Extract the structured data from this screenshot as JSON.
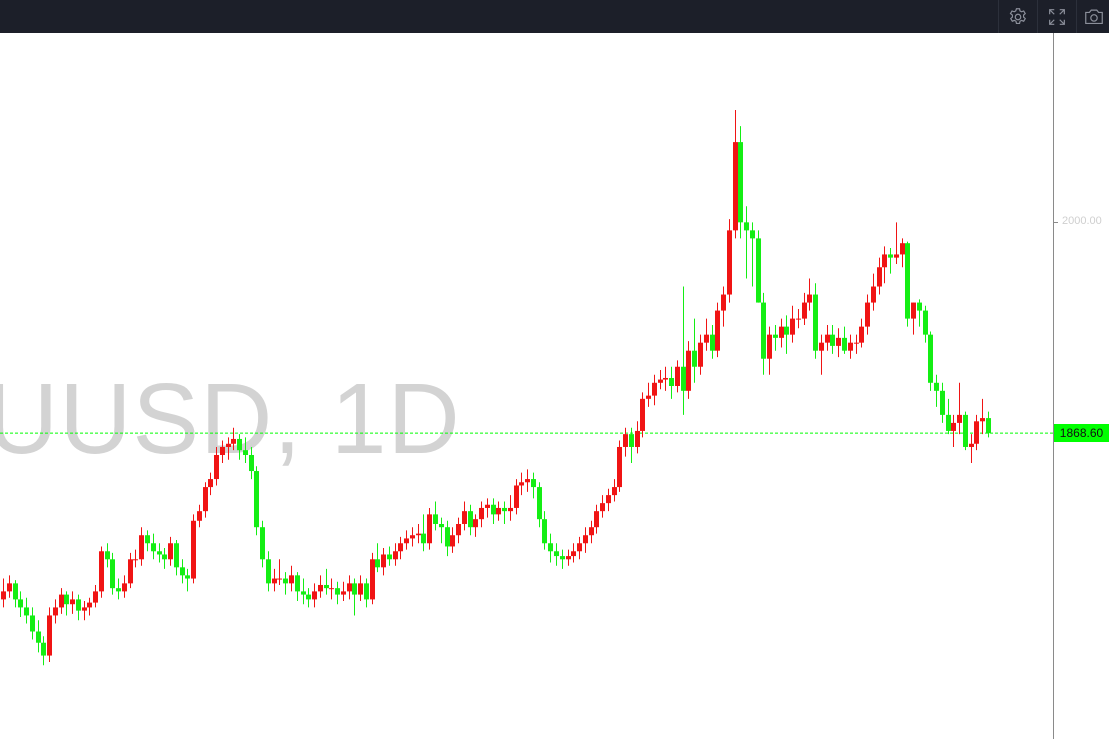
{
  "toolbar": {
    "buttons": [
      {
        "icon": "gear-icon",
        "label": "Settings"
      },
      {
        "icon": "fullscreen-icon",
        "label": "Fullscreen"
      },
      {
        "icon": "camera-icon",
        "label": "Snapshot"
      }
    ]
  },
  "watermark": "UUSD, 1D",
  "colors": {
    "up": "#f01414",
    "down": "#14ee14",
    "last_price": "#00ff00",
    "toolbar_bg": "#1c1f29"
  },
  "chart_data": {
    "type": "candlestick",
    "ylim": [
      1678,
      2118
    ],
    "grid": false,
    "y_ticks": [
      {
        "value": 2000,
        "label": "2000.00"
      }
    ],
    "last_price": {
      "value": 1868.6,
      "label": "1868.60"
    },
    "ohlc": [
      [
        1765,
        1778,
        1760,
        1770
      ],
      [
        1770,
        1780,
        1766,
        1775
      ],
      [
        1775,
        1777,
        1760,
        1765
      ],
      [
        1765,
        1770,
        1754,
        1760
      ],
      [
        1760,
        1766,
        1750,
        1755
      ],
      [
        1755,
        1760,
        1740,
        1745
      ],
      [
        1745,
        1752,
        1732,
        1738
      ],
      [
        1738,
        1742,
        1724,
        1730
      ],
      [
        1730,
        1760,
        1726,
        1755
      ],
      [
        1755,
        1765,
        1750,
        1760
      ],
      [
        1760,
        1772,
        1756,
        1768
      ],
      [
        1768,
        1770,
        1755,
        1762
      ],
      [
        1762,
        1770,
        1756,
        1765
      ],
      [
        1765,
        1768,
        1752,
        1758
      ],
      [
        1758,
        1764,
        1752,
        1760
      ],
      [
        1760,
        1766,
        1755,
        1763
      ],
      [
        1763,
        1774,
        1760,
        1770
      ],
      [
        1770,
        1798,
        1766,
        1795
      ],
      [
        1795,
        1800,
        1785,
        1790
      ],
      [
        1790,
        1794,
        1768,
        1772
      ],
      [
        1772,
        1778,
        1765,
        1770
      ],
      [
        1770,
        1780,
        1766,
        1775
      ],
      [
        1775,
        1794,
        1772,
        1790
      ],
      [
        1790,
        1796,
        1785,
        1790
      ],
      [
        1790,
        1810,
        1786,
        1805
      ],
      [
        1805,
        1808,
        1795,
        1800
      ],
      [
        1800,
        1806,
        1790,
        1795
      ],
      [
        1795,
        1800,
        1788,
        1793
      ],
      [
        1793,
        1797,
        1784,
        1790
      ],
      [
        1790,
        1804,
        1786,
        1800
      ],
      [
        1800,
        1802,
        1780,
        1785
      ],
      [
        1785,
        1790,
        1775,
        1780
      ],
      [
        1780,
        1784,
        1770,
        1778
      ],
      [
        1778,
        1818,
        1775,
        1814
      ],
      [
        1814,
        1824,
        1810,
        1820
      ],
      [
        1820,
        1838,
        1816,
        1835
      ],
      [
        1835,
        1844,
        1830,
        1840
      ],
      [
        1840,
        1860,
        1836,
        1855
      ],
      [
        1855,
        1864,
        1850,
        1860
      ],
      [
        1860,
        1866,
        1852,
        1862
      ],
      [
        1862,
        1872,
        1858,
        1865
      ],
      [
        1865,
        1868,
        1852,
        1858
      ],
      [
        1858,
        1866,
        1850,
        1855
      ],
      [
        1855,
        1860,
        1840,
        1845
      ],
      [
        1845,
        1848,
        1805,
        1810
      ],
      [
        1810,
        1814,
        1785,
        1790
      ],
      [
        1790,
        1795,
        1770,
        1775
      ],
      [
        1775,
        1784,
        1770,
        1778
      ],
      [
        1778,
        1790,
        1774,
        1778
      ],
      [
        1778,
        1782,
        1768,
        1775
      ],
      [
        1775,
        1786,
        1770,
        1780
      ],
      [
        1780,
        1782,
        1764,
        1770
      ],
      [
        1770,
        1778,
        1762,
        1768
      ],
      [
        1768,
        1772,
        1760,
        1765
      ],
      [
        1765,
        1775,
        1760,
        1770
      ],
      [
        1770,
        1780,
        1766,
        1774
      ],
      [
        1774,
        1784,
        1768,
        1772
      ],
      [
        1772,
        1778,
        1765,
        1772
      ],
      [
        1772,
        1776,
        1762,
        1768
      ],
      [
        1768,
        1776,
        1764,
        1770
      ],
      [
        1770,
        1780,
        1765,
        1775
      ],
      [
        1775,
        1778,
        1755,
        1768
      ],
      [
        1768,
        1780,
        1764,
        1775
      ],
      [
        1775,
        1778,
        1760,
        1765
      ],
      [
        1765,
        1794,
        1762,
        1790
      ],
      [
        1790,
        1800,
        1782,
        1785
      ],
      [
        1785,
        1797,
        1780,
        1793
      ],
      [
        1793,
        1798,
        1786,
        1790
      ],
      [
        1790,
        1800,
        1786,
        1795
      ],
      [
        1795,
        1804,
        1790,
        1800
      ],
      [
        1800,
        1808,
        1796,
        1803
      ],
      [
        1803,
        1810,
        1798,
        1805
      ],
      [
        1805,
        1812,
        1800,
        1806
      ],
      [
        1806,
        1818,
        1795,
        1800
      ],
      [
        1800,
        1822,
        1796,
        1818
      ],
      [
        1818,
        1826,
        1808,
        1812
      ],
      [
        1812,
        1816,
        1800,
        1810
      ],
      [
        1810,
        1814,
        1792,
        1798
      ],
      [
        1798,
        1810,
        1794,
        1805
      ],
      [
        1805,
        1816,
        1800,
        1812
      ],
      [
        1812,
        1826,
        1808,
        1820
      ],
      [
        1820,
        1824,
        1805,
        1810
      ],
      [
        1810,
        1818,
        1804,
        1815
      ],
      [
        1815,
        1826,
        1810,
        1822
      ],
      [
        1822,
        1828,
        1816,
        1824
      ],
      [
        1824,
        1828,
        1812,
        1818
      ],
      [
        1818,
        1826,
        1814,
        1822
      ],
      [
        1822,
        1826,
        1812,
        1820
      ],
      [
        1820,
        1830,
        1814,
        1822
      ],
      [
        1822,
        1840,
        1818,
        1836
      ],
      [
        1836,
        1844,
        1830,
        1838
      ],
      [
        1838,
        1846,
        1832,
        1840
      ],
      [
        1840,
        1844,
        1828,
        1835
      ],
      [
        1835,
        1838,
        1810,
        1815
      ],
      [
        1815,
        1820,
        1796,
        1800
      ],
      [
        1800,
        1806,
        1788,
        1795
      ],
      [
        1795,
        1800,
        1786,
        1792
      ],
      [
        1792,
        1796,
        1784,
        1790
      ],
      [
        1790,
        1796,
        1786,
        1792
      ],
      [
        1792,
        1800,
        1788,
        1795
      ],
      [
        1795,
        1804,
        1790,
        1800
      ],
      [
        1800,
        1810,
        1794,
        1805
      ],
      [
        1805,
        1814,
        1800,
        1810
      ],
      [
        1810,
        1824,
        1806,
        1820
      ],
      [
        1820,
        1830,
        1816,
        1825
      ],
      [
        1825,
        1834,
        1820,
        1830
      ],
      [
        1830,
        1840,
        1826,
        1835
      ],
      [
        1835,
        1864,
        1832,
        1860
      ],
      [
        1860,
        1872,
        1854,
        1868
      ],
      [
        1868,
        1872,
        1850,
        1860
      ],
      [
        1860,
        1876,
        1856,
        1870
      ],
      [
        1870,
        1894,
        1866,
        1890
      ],
      [
        1890,
        1900,
        1885,
        1892
      ],
      [
        1892,
        1905,
        1886,
        1900
      ],
      [
        1900,
        1908,
        1896,
        1902
      ],
      [
        1902,
        1910,
        1895,
        1903
      ],
      [
        1903,
        1910,
        1890,
        1898
      ],
      [
        1898,
        1914,
        1894,
        1910
      ],
      [
        1910,
        1960,
        1880,
        1895
      ],
      [
        1895,
        1926,
        1890,
        1920
      ],
      [
        1920,
        1940,
        1900,
        1910
      ],
      [
        1910,
        1930,
        1905,
        1925
      ],
      [
        1925,
        1940,
        1920,
        1930
      ],
      [
        1930,
        1936,
        1915,
        1920
      ],
      [
        1920,
        1950,
        1916,
        1945
      ],
      [
        1945,
        1960,
        1935,
        1955
      ],
      [
        1955,
        2002,
        1950,
        1995
      ],
      [
        1995,
        2070,
        1990,
        2050
      ],
      [
        2050,
        2060,
        1990,
        2000
      ],
      [
        2000,
        2010,
        1965,
        1995
      ],
      [
        1995,
        2000,
        1960,
        1990
      ],
      [
        1990,
        1995,
        1950,
        1950
      ],
      [
        1950,
        1956,
        1905,
        1915
      ],
      [
        1915,
        1935,
        1905,
        1930
      ],
      [
        1930,
        1936,
        1920,
        1928
      ],
      [
        1928,
        1940,
        1922,
        1935
      ],
      [
        1935,
        1942,
        1918,
        1930
      ],
      [
        1930,
        1948,
        1925,
        1940
      ],
      [
        1940,
        1946,
        1934,
        1940
      ],
      [
        1940,
        1956,
        1936,
        1950
      ],
      [
        1950,
        1965,
        1945,
        1955
      ],
      [
        1955,
        1962,
        1915,
        1920
      ],
      [
        1920,
        1930,
        1905,
        1925
      ],
      [
        1925,
        1936,
        1920,
        1930
      ],
      [
        1930,
        1936,
        1918,
        1923
      ],
      [
        1923,
        1934,
        1916,
        1928
      ],
      [
        1928,
        1935,
        1918,
        1920
      ],
      [
        1920,
        1930,
        1915,
        1925
      ],
      [
        1925,
        1930,
        1918,
        1925
      ],
      [
        1925,
        1940,
        1922,
        1935
      ],
      [
        1935,
        1955,
        1930,
        1950
      ],
      [
        1950,
        1968,
        1945,
        1960
      ],
      [
        1960,
        1978,
        1955,
        1972
      ],
      [
        1972,
        1985,
        1962,
        1980
      ],
      [
        1980,
        1984,
        1968,
        1978
      ],
      [
        1978,
        2000,
        1974,
        1980
      ],
      [
        1980,
        1990,
        1972,
        1987
      ],
      [
        1987,
        1988,
        1935,
        1940
      ],
      [
        1940,
        1950,
        1930,
        1950
      ],
      [
        1950,
        1952,
        1935,
        1945
      ],
      [
        1945,
        1948,
        1925,
        1930
      ],
      [
        1930,
        1932,
        1895,
        1900
      ],
      [
        1900,
        1905,
        1885,
        1895
      ],
      [
        1895,
        1900,
        1875,
        1880
      ],
      [
        1880,
        1890,
        1868,
        1870
      ],
      [
        1870,
        1880,
        1860,
        1875
      ],
      [
        1875,
        1900,
        1868,
        1880
      ],
      [
        1880,
        1882,
        1858,
        1860
      ],
      [
        1860,
        1868,
        1850,
        1862
      ],
      [
        1862,
        1880,
        1858,
        1876
      ],
      [
        1876,
        1890,
        1868,
        1878
      ],
      [
        1878,
        1882,
        1866,
        1868.6
      ]
    ]
  }
}
